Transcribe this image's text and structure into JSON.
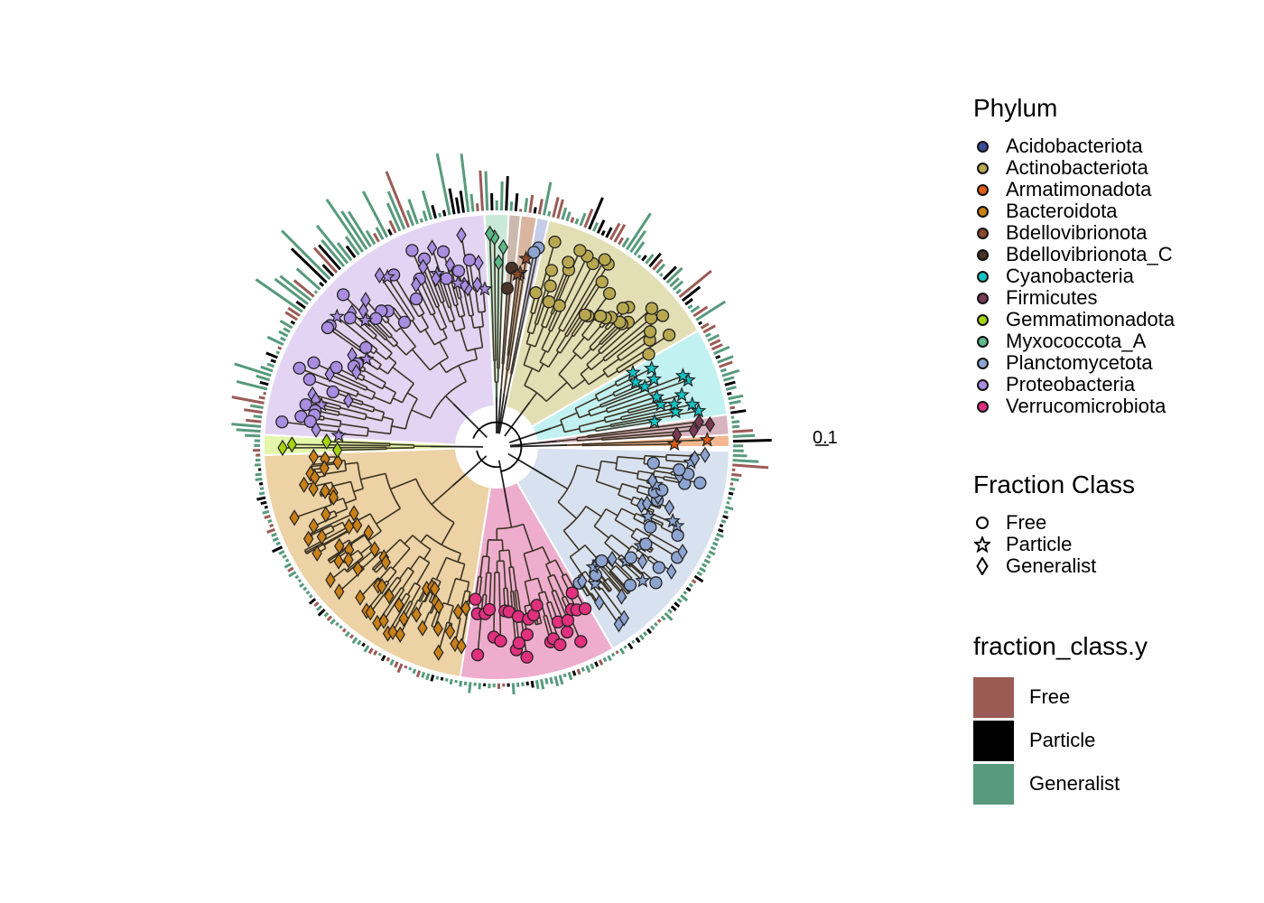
{
  "scale_label": "0.1",
  "legend_phylum": {
    "title": "Phylum",
    "items": [
      {
        "label": "Acidobacteriota",
        "color": "#3b4b9a"
      },
      {
        "label": "Actinobacteriota",
        "color": "#b7a850"
      },
      {
        "label": "Armatimonadota",
        "color": "#e25b12"
      },
      {
        "label": "Bacteroidota",
        "color": "#c98018"
      },
      {
        "label": "Bdellovibrionota",
        "color": "#8a4a2a"
      },
      {
        "label": "Bdellovibrionota_C",
        "color": "#4a3328"
      },
      {
        "label": "Cyanobacteria",
        "color": "#14c4c4"
      },
      {
        "label": "Firmicutes",
        "color": "#7a3a52"
      },
      {
        "label": "Gemmatimonadota",
        "color": "#a6d40e"
      },
      {
        "label": "Myxococcota_A",
        "color": "#5cb88a"
      },
      {
        "label": "Planctomycetota",
        "color": "#8ea4d0"
      },
      {
        "label": "Proteobacteria",
        "color": "#a88de0"
      },
      {
        "label": "Verrucomicrobiota",
        "color": "#e0307e"
      }
    ]
  },
  "legend_fraction": {
    "title": "Fraction Class",
    "items": [
      {
        "label": "Free",
        "shape": "circle"
      },
      {
        "label": "Particle",
        "shape": "star"
      },
      {
        "label": "Generalist",
        "shape": "diamond"
      }
    ]
  },
  "legend_bars": {
    "title": "fraction_class.y",
    "items": [
      {
        "label": "Free",
        "color": "#9a5b55"
      },
      {
        "label": "Particle",
        "color": "#000000"
      },
      {
        "label": "Generalist",
        "color": "#579a7c"
      }
    ]
  },
  "clades": [
    {
      "phylum": "Proteobacteria",
      "start_deg": 93,
      "end_deg": 177,
      "fill": "#e3d4f3",
      "shape": "mixed"
    },
    {
      "phylum": "Myxococcota_A",
      "start_deg": 87,
      "end_deg": 93,
      "fill": "#c9e8d6",
      "shape": "diamond"
    },
    {
      "phylum": "Bdellovibrionota_C",
      "start_deg": 84,
      "end_deg": 87,
      "fill": "#cbb9ae",
      "shape": "circle"
    },
    {
      "phylum": "Bdellovibrionota",
      "start_deg": 80,
      "end_deg": 84,
      "fill": "#d9b5a0",
      "shape": "star"
    },
    {
      "phylum": "Planctomycetota",
      "start_deg": 77,
      "end_deg": 80,
      "fill": "#c6cde8",
      "shape": "circle"
    },
    {
      "phylum": "Actinobacteriota",
      "start_deg": 30,
      "end_deg": 77,
      "fill": "#e3dfb5",
      "shape": "circle"
    },
    {
      "phylum": "Cyanobacteria",
      "start_deg": 8,
      "end_deg": 30,
      "fill": "#c1f1f1",
      "shape": "star"
    },
    {
      "phylum": "Firmicutes",
      "start_deg": 3,
      "end_deg": 8,
      "fill": "#d8b4c0",
      "shape": "diamond"
    },
    {
      "phylum": "Armatimonadota",
      "start_deg": 0,
      "end_deg": 3,
      "fill": "#f3b790",
      "shape": "star"
    },
    {
      "phylum": "Planctomycetota",
      "start_deg": -60,
      "end_deg": -1,
      "fill": "#d8e1f0",
      "shape": "mixed"
    },
    {
      "phylum": "Verrucomicrobiota",
      "start_deg": -99,
      "end_deg": -60,
      "fill": "#efadce",
      "shape": "circle"
    },
    {
      "phylum": "Bacteroidota",
      "start_deg": -178,
      "end_deg": -99,
      "fill": "#ecd2a4",
      "shape": "diamond"
    },
    {
      "phylum": "Gemmatimonadota",
      "start_deg": 177,
      "end_deg": 182,
      "fill": "#e3f6a9",
      "shape": "diamond"
    }
  ]
}
